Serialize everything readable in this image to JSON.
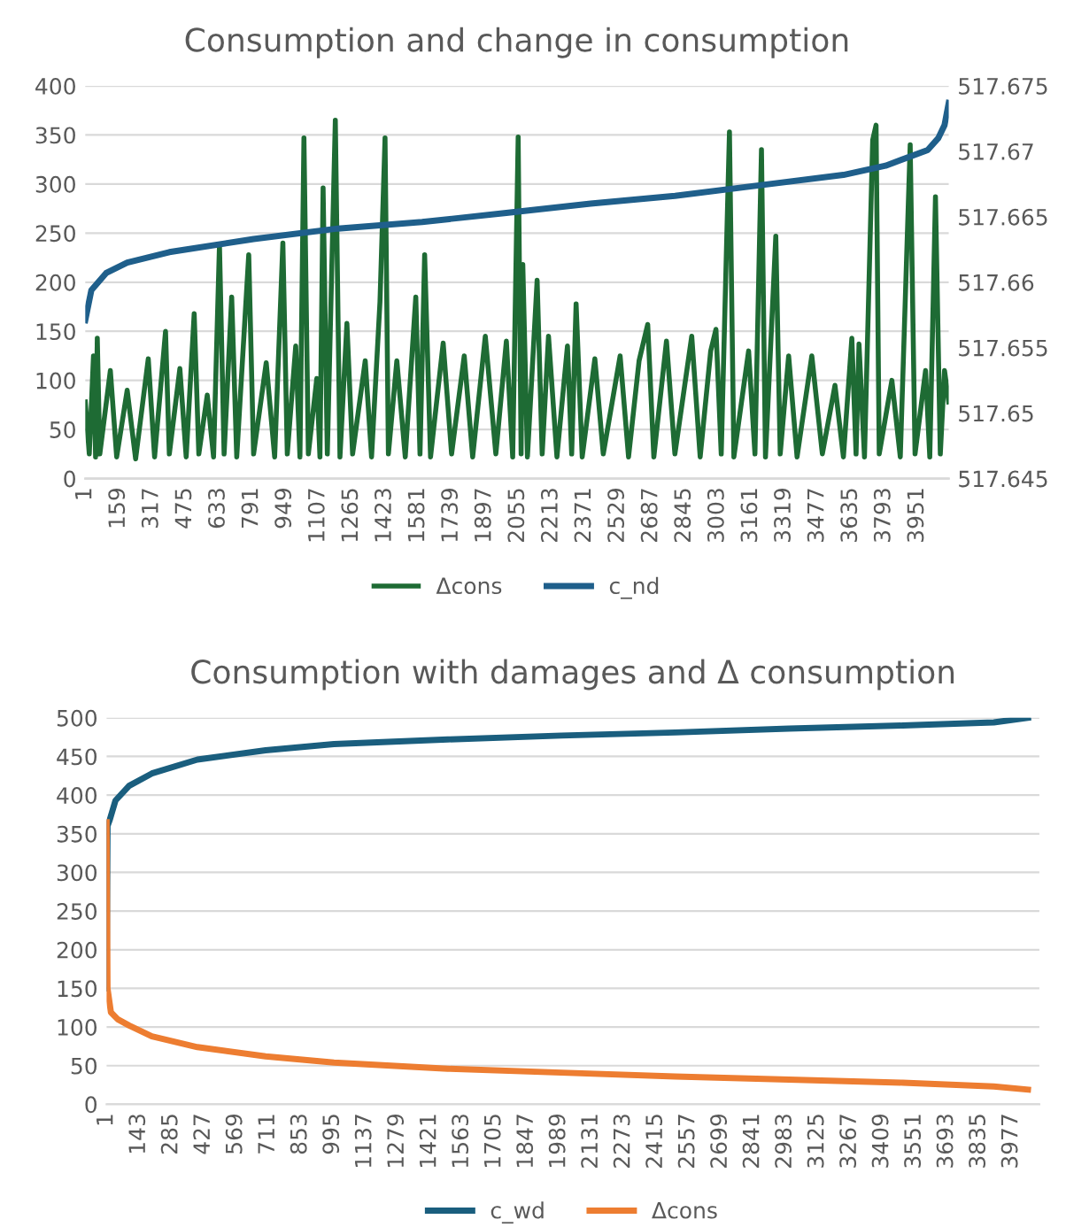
{
  "chart_data": [
    {
      "type": "line",
      "title": "Consumption and change in consumption",
      "legend": "bottom",
      "grid": "y",
      "xlim": [
        1,
        4100
      ],
      "xticks": [
        1,
        159,
        317,
        475,
        633,
        791,
        949,
        1107,
        1265,
        1423,
        1581,
        1739,
        1897,
        2055,
        2213,
        2371,
        2529,
        2687,
        2845,
        3003,
        3161,
        3319,
        3477,
        3635,
        3793,
        3951
      ],
      "ylim": [
        0,
        400
      ],
      "yticks": [
        0,
        50,
        100,
        150,
        200,
        250,
        300,
        350,
        400
      ],
      "y2lim": [
        517.645,
        517.675
      ],
      "y2ticks": [
        517.645,
        517.65,
        517.655,
        517.66,
        517.665,
        517.67,
        517.675
      ],
      "series": [
        {
          "name": "Δcons",
          "color": "#1e6b34",
          "x": [
            1,
            20,
            40,
            50,
            58,
            70,
            120,
            150,
            200,
            240,
            300,
            330,
            382,
            400,
            450,
            480,
            518,
            540,
            580,
            610,
            638,
            660,
            696,
            720,
            777,
            800,
            860,
            900,
            939,
            960,
            1000,
            1020,
            1039,
            1060,
            1100,
            1115,
            1130,
            1150,
            1188,
            1210,
            1243,
            1270,
            1330,
            1360,
            1400,
            1424,
            1440,
            1480,
            1520,
            1570,
            1590,
            1612,
            1640,
            1700,
            1740,
            1800,
            1840,
            1900,
            1950,
            2000,
            2030,
            2056,
            2070,
            2078,
            2100,
            2146,
            2170,
            2200,
            2240,
            2290,
            2310,
            2331,
            2360,
            2420,
            2460,
            2540,
            2580,
            2630,
            2671,
            2700,
            2760,
            2800,
            2880,
            2920,
            2970,
            2995,
            3020,
            3059,
            3080,
            3150,
            3180,
            3211,
            3230,
            3279,
            3300,
            3340,
            3380,
            3450,
            3500,
            3560,
            3600,
            3640,
            3660,
            3674,
            3700,
            3739,
            3755,
            3770,
            3830,
            3870,
            3917,
            3940,
            3990,
            4010,
            4037,
            4060,
            4080,
            4100
          ],
          "values": [
            78,
            25,
            125,
            22,
            143,
            25,
            110,
            22,
            90,
            20,
            122,
            22,
            150,
            25,
            112,
            22,
            168,
            25,
            85,
            22,
            238,
            25,
            185,
            22,
            228,
            25,
            118,
            22,
            240,
            25,
            135,
            22,
            347,
            25,
            102,
            22,
            296,
            25,
            365,
            22,
            158,
            25,
            120,
            22,
            180,
            347,
            25,
            120,
            22,
            185,
            25,
            228,
            22,
            138,
            25,
            125,
            22,
            145,
            25,
            140,
            22,
            348,
            25,
            218,
            22,
            202,
            25,
            145,
            22,
            135,
            25,
            178,
            22,
            122,
            25,
            125,
            22,
            120,
            157,
            22,
            140,
            25,
            145,
            22,
            130,
            152,
            25,
            353,
            22,
            130,
            25,
            335,
            22,
            247,
            25,
            125,
            22,
            125,
            25,
            95,
            22,
            143,
            25,
            137,
            22,
            345,
            360,
            25,
            100,
            22,
            340,
            25,
            110,
            22,
            287,
            25,
            110,
            78
          ]
        },
        {
          "name": "c_nd",
          "color": "#1f5f8b",
          "axis": "y2",
          "x": [
            1,
            30,
            100,
            200,
            400,
            800,
            1200,
            1600,
            2000,
            2400,
            2800,
            3200,
            3600,
            3800,
            4000,
            4050,
            4080,
            4100
          ],
          "values": [
            517.6571,
            517.6594,
            517.6607,
            517.6615,
            517.6623,
            517.6633,
            517.6641,
            517.6646,
            517.6653,
            517.666,
            517.6666,
            517.6674,
            517.6682,
            517.6689,
            517.6701,
            517.671,
            517.672,
            517.6737
          ]
        }
      ]
    },
    {
      "type": "line",
      "title": "Consumption with damages and Δ consumption",
      "legend": "bottom",
      "grid": "y",
      "xlim": [
        1,
        4100
      ],
      "xticks": [
        1,
        143,
        285,
        427,
        569,
        711,
        853,
        995,
        1137,
        1279,
        1421,
        1563,
        1705,
        1847,
        1989,
        2131,
        2273,
        2415,
        2557,
        2699,
        2841,
        2983,
        3125,
        3267,
        3409,
        3551,
        3693,
        3835,
        3977
      ],
      "ylim": [
        0,
        500
      ],
      "yticks": [
        0,
        50,
        100,
        150,
        200,
        250,
        300,
        350,
        400,
        450,
        500
      ],
      "series": [
        {
          "name": "c_wd",
          "color": "#1a5e7e",
          "x": [
            1,
            5,
            15,
            40,
            100,
            200,
            400,
            700,
            1000,
            1500,
            2000,
            2500,
            3000,
            3500,
            3900,
            4050
          ],
          "values": [
            150,
            360,
            368,
            393,
            412,
            428,
            446,
            458,
            466,
            472,
            477,
            481,
            486,
            490,
            494,
            500
          ]
        },
        {
          "name": "Δcons",
          "color": "#ed7d31",
          "x": [
            1,
            5,
            20,
            50,
            100,
            200,
            400,
            700,
            1000,
            1500,
            2000,
            2500,
            3000,
            3500,
            3900,
            4050
          ],
          "values": [
            365,
            150,
            119,
            110,
            102,
            88,
            74,
            62,
            54,
            46,
            41,
            36,
            32,
            28,
            23,
            19
          ]
        }
      ]
    }
  ]
}
